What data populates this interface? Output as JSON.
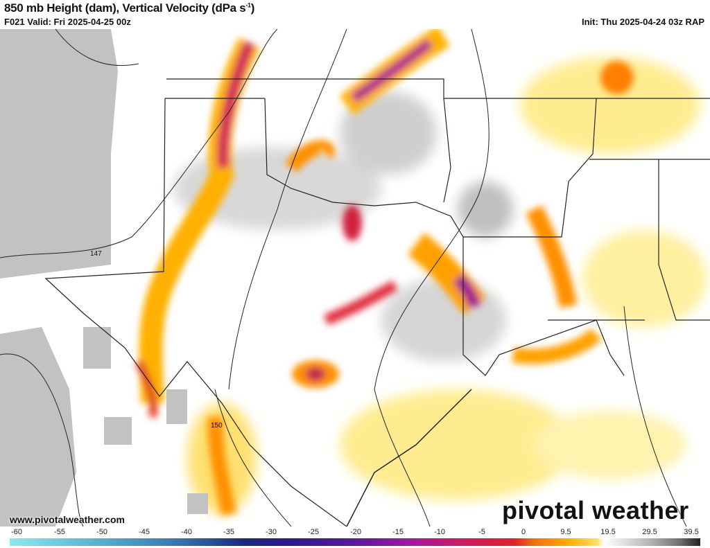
{
  "header": {
    "title": "850 mb Height (dam), Vertical Velocity (dPa s",
    "title_sup": "-1",
    "title_end": ")",
    "valid": "F021 Valid: Fri 2025-04-25 00z",
    "init": "Init: Thu 2025-04-24 03z RAP"
  },
  "map": {
    "contour_labels": [
      "147",
      "150"
    ]
  },
  "watermark": {
    "site": "www.pivotalweather.com",
    "logo": "pivotal weather"
  },
  "colorbar": {
    "ticks": [
      "-60",
      "-55",
      "-50",
      "-45",
      "-40",
      "-35",
      "-30",
      "-25",
      "-20",
      "-15",
      "-10",
      "-5",
      "0",
      "9.5",
      "19.5",
      "29.5",
      "39.5"
    ],
    "colors": {
      "ascent_strong": "#9a1aa0",
      "ascent_mod": "#e0202a",
      "ascent_weak": "#ffb000",
      "ascent_light": "#ffe880",
      "subsidence": "#a0a0a0",
      "masked": "#c0c0c0"
    }
  }
}
